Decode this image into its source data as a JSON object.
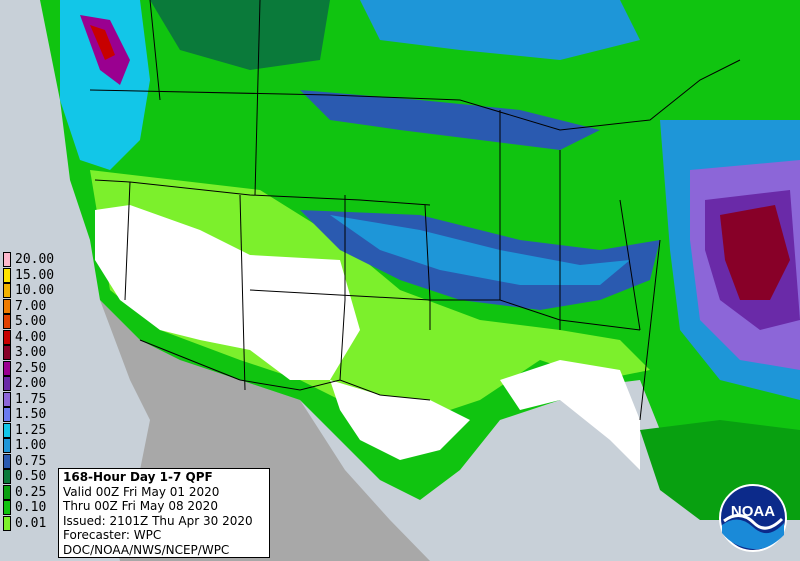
{
  "legend": {
    "items": [
      {
        "label": "20.00",
        "color": "#fdb8cc"
      },
      {
        "label": "15.00",
        "color": "#ffe400"
      },
      {
        "label": "10.00",
        "color": "#f2b200"
      },
      {
        "label": "7.00",
        "color": "#ee7b00"
      },
      {
        "label": "5.00",
        "color": "#e04000"
      },
      {
        "label": "4.00",
        "color": "#c80000"
      },
      {
        "label": "3.00",
        "color": "#880028"
      },
      {
        "label": "2.50",
        "color": "#9a0090"
      },
      {
        "label": "2.00",
        "color": "#6a2aa8"
      },
      {
        "label": "1.75",
        "color": "#8c66d8"
      },
      {
        "label": "1.50",
        "color": "#6a7af0"
      },
      {
        "label": "1.25",
        "color": "#12c6e8"
      },
      {
        "label": "1.00",
        "color": "#1e96d8"
      },
      {
        "label": "0.75",
        "color": "#2a5ab0"
      },
      {
        "label": "0.50",
        "color": "#0a7a3a"
      },
      {
        "label": "0.25",
        "color": "#08a010"
      },
      {
        "label": "0.10",
        "color": "#10c410"
      },
      {
        "label": "0.01",
        "color": "#7cf02c"
      }
    ]
  },
  "info": {
    "title": "168-Hour Day 1-7 QPF",
    "valid": "Valid 00Z Fri May 01 2020",
    "thru": "Thru 00Z Fri May 08 2020",
    "issued": "Issued: 2101Z Thu Apr 30 2020",
    "forecaster": "Forecaster: WPC",
    "agency": "DOC/NOAA/NWS/NCEP/WPC"
  },
  "logo": {
    "text": "NOAA"
  },
  "colors": {
    "ocean": "#c8d0d8",
    "land_outside": "#a8a8a8",
    "no_precip": "#ffffff",
    "borders": "#000000"
  }
}
